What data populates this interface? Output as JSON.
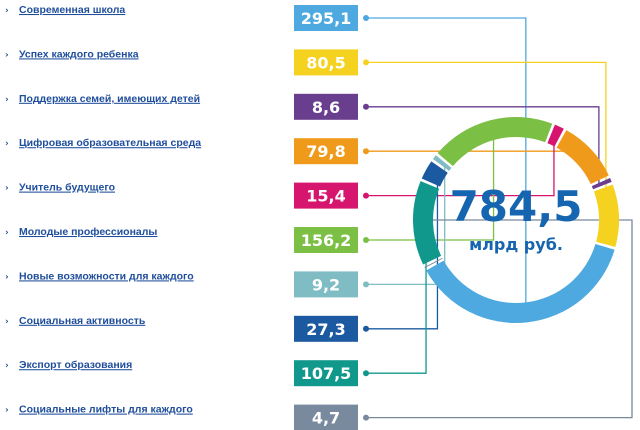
{
  "chart_data": {
    "type": "pie",
    "title": "",
    "total": "784,5",
    "unit": "млрд руб.",
    "categories": [
      "Современная школа",
      "Успех каждого ребенка",
      "Поддержка семей, имеющих детей",
      "Цифровая образовательная среда",
      "Учитель будущего",
      "Молодые профессионалы",
      "Новые возможности для каждого",
      "Социальная активность",
      "Экспорт образования",
      "Социальные лифты для каждого"
    ],
    "value_labels": [
      "295,1",
      "80,5",
      "8,6",
      "79,8",
      "15,4",
      "156,2",
      "9,2",
      "27,3",
      "107,5",
      "4,7"
    ],
    "values": [
      295.1,
      80.5,
      8.6,
      79.8,
      15.4,
      156.2,
      9.2,
      27.3,
      107.5,
      4.7
    ],
    "colors": [
      "#4ea9e0",
      "#f5d21f",
      "#6a3e8e",
      "#ef9a1a",
      "#d6166e",
      "#7bbf44",
      "#7fbcc4",
      "#1b5aa0",
      "#11988d",
      "#7a8a9e"
    ],
    "segment_order": [
      0,
      9,
      8,
      7,
      6,
      5,
      4,
      3,
      2,
      1
    ],
    "start_angle_deg": 106,
    "legend_arrow": "›"
  }
}
